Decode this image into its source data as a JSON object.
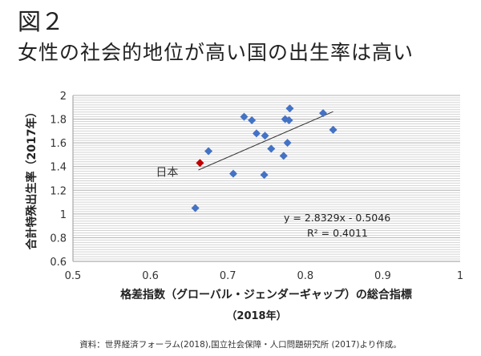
{
  "figure_label": "図２",
  "title": "女性の社会的地位が高い国の出生率は高い",
  "source": "資料：世界経済フォーラム(2018),国立社会保障・人口問題研究所 (2017)より作成。",
  "colors": {
    "points": "#4472C4",
    "japan": "#C00000",
    "trend": "#333333"
  },
  "chart_data": {
    "type": "scatter",
    "xlabel": "格差指数（グローバル・ジェンダーギャップ）の総合指標",
    "xlabel2": "（2018年）",
    "ylabel": "合計特殊出生率（2017年）",
    "xlim": [
      0.5,
      1.0
    ],
    "ylim": [
      0.6,
      2.0
    ],
    "xticks": [
      "0.5",
      "0.6",
      "0.7",
      "0.8",
      "0.9",
      "1"
    ],
    "yticks": [
      "0.6",
      "0.8",
      "1",
      "1.2",
      "1.4",
      "1.6",
      "1.8",
      "2"
    ],
    "grid": "horizontal, major 0.2, minor 0.02",
    "points": [
      {
        "x": 0.658,
        "y": 1.05
      },
      {
        "x": 0.675,
        "y": 1.53
      },
      {
        "x": 0.707,
        "y": 1.34
      },
      {
        "x": 0.721,
        "y": 1.82
      },
      {
        "x": 0.731,
        "y": 1.79
      },
      {
        "x": 0.737,
        "y": 1.68
      },
      {
        "x": 0.748,
        "y": 1.66
      },
      {
        "x": 0.747,
        "y": 1.33
      },
      {
        "x": 0.756,
        "y": 1.55
      },
      {
        "x": 0.772,
        "y": 1.49
      },
      {
        "x": 0.777,
        "y": 1.6
      },
      {
        "x": 0.774,
        "y": 1.8
      },
      {
        "x": 0.779,
        "y": 1.79
      },
      {
        "x": 0.78,
        "y": 1.89
      },
      {
        "x": 0.823,
        "y": 1.85
      },
      {
        "x": 0.836,
        "y": 1.71
      }
    ],
    "highlight": {
      "label": "日本",
      "x": 0.664,
      "y": 1.43
    },
    "trendline": {
      "slope": 2.8329,
      "intercept": -0.5046,
      "x_range": [
        0.662,
        0.836
      ],
      "equation": "y = 2.8329x - 0.5046",
      "r2": "R² = 0.4011"
    }
  }
}
